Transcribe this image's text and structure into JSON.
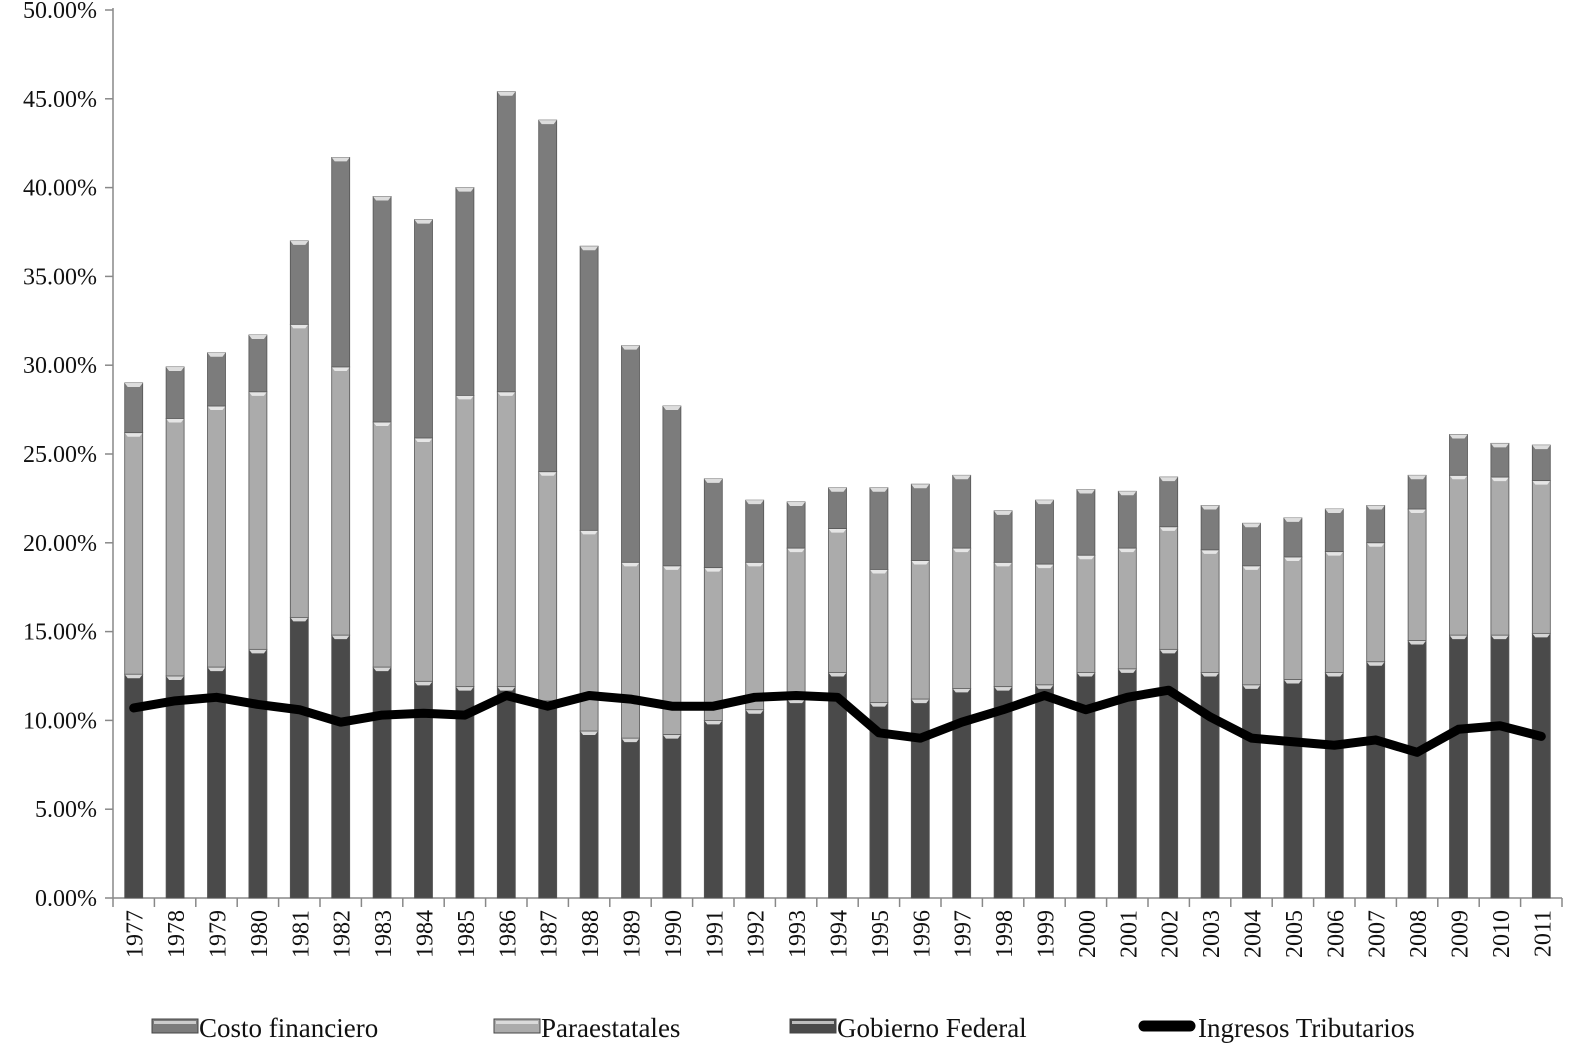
{
  "chart_data": {
    "type": "bar",
    "stacked": true,
    "title": "",
    "xlabel": "",
    "ylabel": "",
    "ylim": [
      0,
      50
    ],
    "y_tick_values": [
      0,
      5,
      10,
      15,
      20,
      25,
      30,
      35,
      40,
      45,
      50
    ],
    "y_tick_labels": [
      "0.00%",
      "5.00%",
      "10.00%",
      "15.00%",
      "20.00%",
      "25.00%",
      "30.00%",
      "35.00%",
      "40.00%",
      "45.00%",
      "50.00%"
    ],
    "categories": [
      "1977",
      "1978",
      "1979",
      "1980",
      "1981",
      "1982",
      "1983",
      "1984",
      "1985",
      "1986",
      "1987",
      "1988",
      "1989",
      "1990",
      "1991",
      "1992",
      "1993",
      "1994",
      "1995",
      "1996",
      "1997",
      "1998",
      "1999",
      "2000",
      "2001",
      "2002",
      "2003",
      "2004",
      "2005",
      "2006",
      "2007",
      "2008",
      "2009",
      "2010",
      "2011"
    ],
    "grid": false,
    "legend_position": "bottom",
    "series": [
      {
        "name": "Gobierno Federal",
        "kind": "bar",
        "color": "#4a4a4a",
        "values": [
          12.6,
          12.5,
          13.0,
          14.0,
          15.8,
          14.8,
          13.0,
          12.2,
          11.9,
          11.9,
          11.1,
          9.4,
          9.0,
          9.2,
          10.0,
          10.6,
          11.2,
          12.7,
          11.0,
          11.2,
          11.8,
          11.9,
          12.0,
          12.7,
          12.9,
          14.0,
          12.7,
          12.0,
          12.3,
          12.7,
          13.3,
          14.5,
          14.8,
          14.8,
          14.9
        ]
      },
      {
        "name": "Paraestatales",
        "kind": "bar",
        "color": "#ababab",
        "values": [
          13.6,
          14.5,
          14.7,
          14.5,
          16.5,
          15.1,
          13.8,
          13.7,
          16.4,
          16.6,
          12.9,
          11.3,
          9.9,
          9.5,
          8.6,
          8.3,
          8.5,
          8.1,
          7.5,
          7.8,
          7.9,
          7.0,
          6.8,
          6.6,
          6.8,
          6.9,
          6.9,
          6.7,
          6.9,
          6.8,
          6.7,
          7.4,
          9.0,
          8.9,
          8.6
        ]
      },
      {
        "name": "Costo financiero",
        "kind": "bar",
        "color": "#7c7c7c",
        "values": [
          2.8,
          2.9,
          3.0,
          3.2,
          4.7,
          11.8,
          12.7,
          12.3,
          11.7,
          16.9,
          19.8,
          16.0,
          12.2,
          9.0,
          5.0,
          3.5,
          2.6,
          2.3,
          4.6,
          4.3,
          4.1,
          2.9,
          3.6,
          3.7,
          3.2,
          2.8,
          2.5,
          2.4,
          2.2,
          2.4,
          2.1,
          1.9,
          2.3,
          1.9,
          2.0
        ]
      },
      {
        "name": "Ingresos Tributarios",
        "kind": "line",
        "color": "#000000",
        "values": [
          10.7,
          11.1,
          11.3,
          10.9,
          10.6,
          9.9,
          10.3,
          10.4,
          10.3,
          11.4,
          10.8,
          11.4,
          11.2,
          10.8,
          10.8,
          11.3,
          11.4,
          11.3,
          9.3,
          9.0,
          9.9,
          10.6,
          11.4,
          10.6,
          11.3,
          11.7,
          10.2,
          9.0,
          8.8,
          8.6,
          8.9,
          8.2,
          9.5,
          9.7,
          9.1
        ]
      }
    ],
    "legend_order": [
      "Costo financiero",
      "Paraestatales",
      "Gobierno Federal",
      "Ingresos Tributarios"
    ]
  }
}
